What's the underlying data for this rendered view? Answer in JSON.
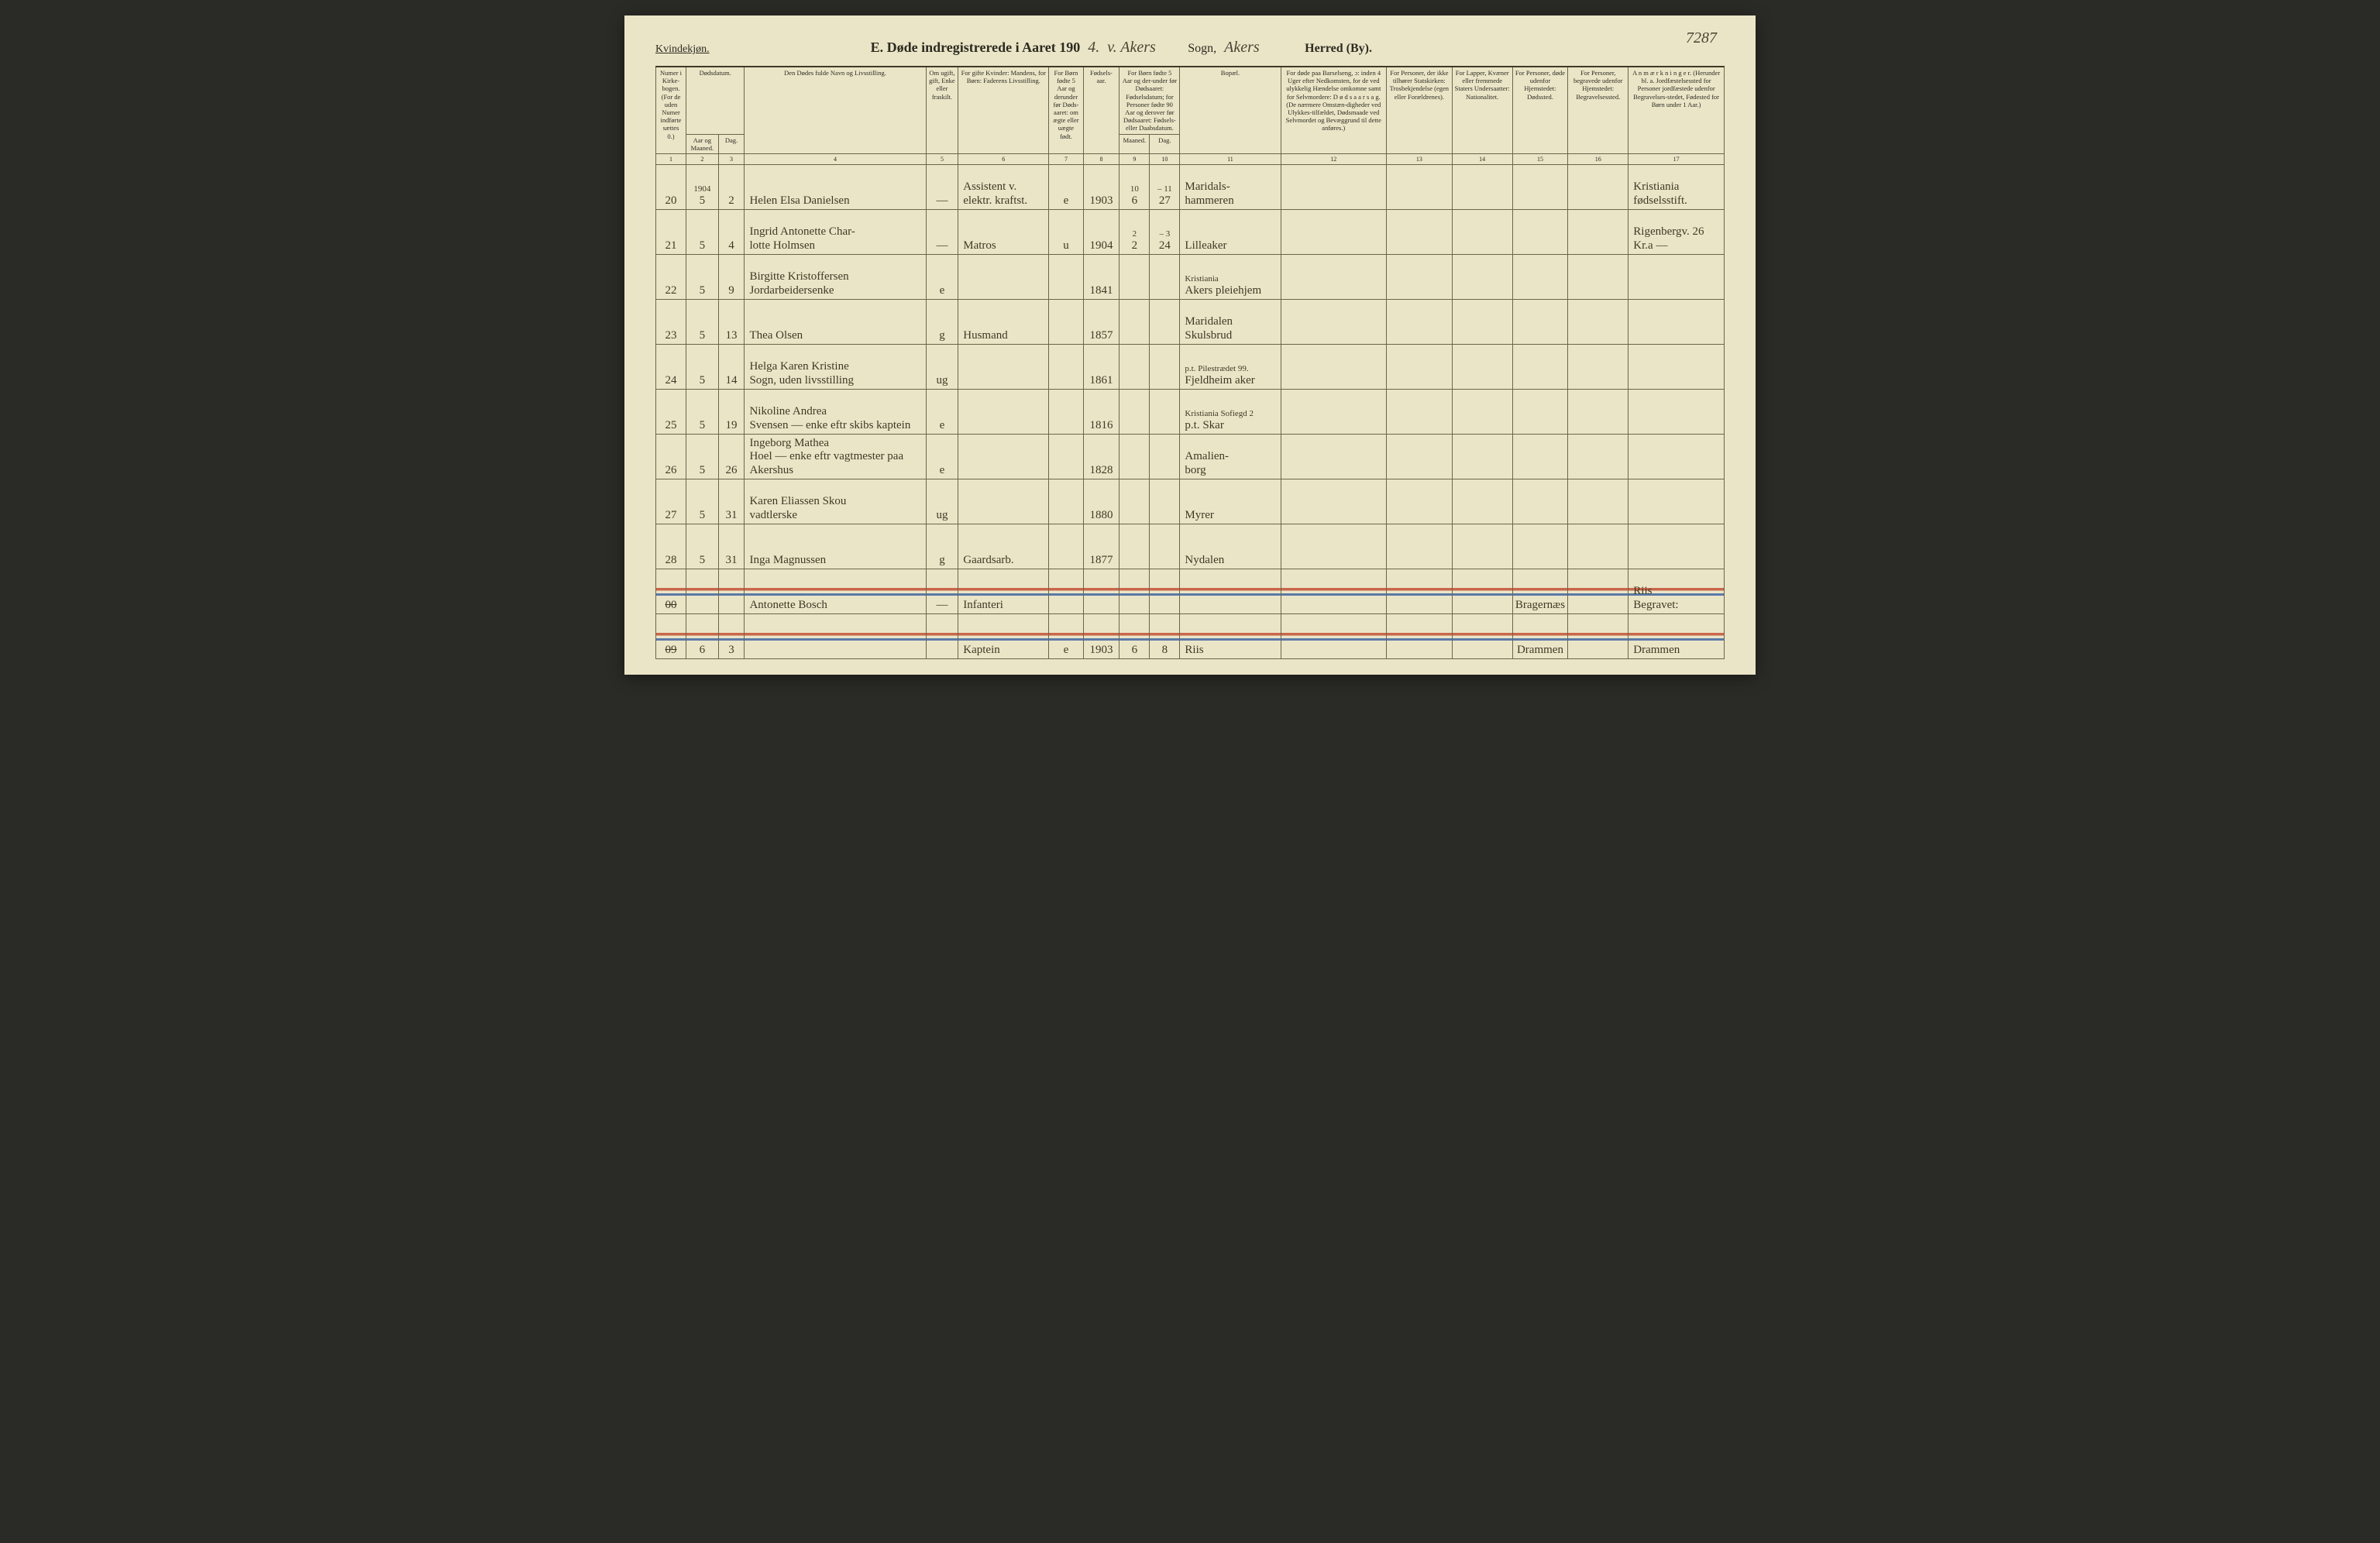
{
  "page_number_hw": "7287",
  "header": {
    "sex_label": "Kvindekjøn.",
    "title_prefix": "E.  Døde indregistrerede i Aaret 190",
    "year_hw": "4.",
    "sogn_hw": "v. Akers",
    "sogn_label": "Sogn,",
    "herred_hw": "Akers",
    "herred_label": "Herred (By)."
  },
  "columns": {
    "c1": "Numer i Kirke-bogen. (For de uden Numer indførte sættes 0.)",
    "c2_group": "Dødsdatum.",
    "c2": "Aar og Maaned.",
    "c3": "Dag.",
    "c4": "Den Dødes fulde Navn og Livsstilling.",
    "c5": "Om ugift, gift, Enke eller fraskilt.",
    "c6": "For gifte Kvinder: Mandens, for Børn: Faderens Livsstilling.",
    "c7": "For Børn fødte 5 Aar og derunder før Døds-aaret: om ægte eller uægte født.",
    "c8": "Fødsels-aar.",
    "c9_10_group": "For Børn fødte 5 Aar og der-under før Dødsaaret: Fødselsdatum; for Personer fødte 90 Aar og derover før Dødsaaret: Fødsels- eller Daabsdatum.",
    "c9": "Maaned.",
    "c10": "Dag.",
    "c11": "Bopæl.",
    "c12": "For døde paa Barselseng, ɔ: inden 4 Uger efter Nedkomsten, for de ved ulykkelig Hændelse omkomne samt for Selvmordere: D ø d s a a r s a g. (De nærmere Omstæn-digheder ved Ulykkes-tilfældet, Dødsmaade ved Selvmordet og Bevæggrund til dette anføres.)",
    "c13": "For Personer, der ikke tilhører Statskirken: Trosbekjendelse (egen eller Forældrenes).",
    "c14": "For Lapper, Kvæner eller fremmede Staters Undersaatter: Nationalitet.",
    "c15": "For Personer, døde udenfor Hjemstedet: Dødssted.",
    "c16": "For Personer, begravede udenfor Hjemstedet: Begravelsessted.",
    "c17": "A n m æ r k n i n g e r. (Herunder bl. a. Jordfæstelsessted for Personer jordfæstede udenfor Begravelses-stedet, Fødested for Børn under 1 Aar.)"
  },
  "colnums": [
    "1",
    "2",
    "3",
    "4",
    "5",
    "6",
    "7",
    "8",
    "9",
    "10",
    "11",
    "12",
    "13",
    "14",
    "15",
    "16",
    "17"
  ],
  "rows": [
    {
      "no": "20",
      "aar_top": "1904",
      "aar": "5",
      "dag": "2",
      "name": "Helen Elsa Danielsen",
      "name_sub": "",
      "status": "—",
      "occ": "Assistent v.\nelektr. kraftst.",
      "legit": "e",
      "faar": "1903",
      "fm_top": "10",
      "fm": "6",
      "fd_top": "– 11",
      "fd": "27",
      "bopael": "Maridals-\nhammeren",
      "anm": "Kristiania\nfødselsstift."
    },
    {
      "no": "21",
      "aar": "5",
      "dag": "4",
      "name": "Ingrid Antonette Char-\nlotte Holmsen",
      "status": "—",
      "occ": "Matros",
      "legit": "u",
      "faar": "1904",
      "fm_top": "2",
      "fm": "2",
      "fd_top": "– 3",
      "fd": "24",
      "bopael": "Lilleaker",
      "anm": "Rigenbergv. 26\nKr.a —"
    },
    {
      "no": "22",
      "aar": "5",
      "dag": "9",
      "name": "Birgitte Kristoffersen\nJordarbeidersenke",
      "status": "e",
      "occ": "",
      "legit": "",
      "faar": "1841",
      "fm": "",
      "fd": "",
      "bopael_sub": "Kristiania",
      "bopael": "Akers pleiehjem",
      "anm": ""
    },
    {
      "no": "23",
      "aar": "5",
      "dag": "13",
      "name": "Thea Olsen",
      "status": "g",
      "occ": "Husmand",
      "legit": "",
      "faar": "1857",
      "fm": "",
      "fd": "",
      "bopael": "Maridalen\nSkulsbrud",
      "anm": ""
    },
    {
      "no": "24",
      "aar": "5",
      "dag": "14",
      "name": "Helga Karen Kristine\nSogn, uden livsstilling",
      "status": "ug",
      "occ": "",
      "legit": "",
      "faar": "1861",
      "fm": "",
      "fd": "",
      "bopael_sub": "p.t. Pilestrædet 99.",
      "bopael": "Fjeldheim aker",
      "anm": ""
    },
    {
      "no": "25",
      "aar": "5",
      "dag": "19",
      "name": "Nikoline Andrea\nSvensen — enke eftr skibs kaptein",
      "status": "e",
      "occ": "",
      "legit": "",
      "faar": "1816",
      "fm": "",
      "fd": "",
      "bopael_sub": "Kristiania Sofiegd 2",
      "bopael": "p.t. Skar",
      "anm": ""
    },
    {
      "no": "26",
      "aar": "5",
      "dag": "26",
      "name": "Ingeborg Mathea\nHoel — enke eftr vagtmester paa Akershus",
      "status": "e",
      "occ": "",
      "legit": "",
      "faar": "1828",
      "fm": "",
      "fd": "",
      "bopael": "Amalien-\nborg",
      "anm": ""
    },
    {
      "no": "27",
      "aar": "5",
      "dag": "31",
      "name": "Karen Eliassen Skou\nvadtlerske",
      "status": "ug",
      "occ": "",
      "legit": "",
      "faar": "1880",
      "fm": "",
      "fd": "",
      "bopael": "Myrer",
      "anm": ""
    },
    {
      "no": "28",
      "aar": "5",
      "dag": "31",
      "name": "Inga Magnussen",
      "status": "g",
      "occ": "Gaardsarb.",
      "legit": "",
      "faar": "1877",
      "fm": "",
      "fd": "",
      "bopael": "Nydalen",
      "anm": ""
    },
    {
      "no_strike": "00",
      "aar": "",
      "dag": "",
      "name": "Antonette Bosch",
      "status": "—",
      "occ": "Infanteri",
      "legit": "",
      "faar": "",
      "fm": "",
      "fd": "",
      "bopael": "",
      "c15": "Bragernæs",
      "anm": "Riis\nBegravet:",
      "struck": true
    },
    {
      "no_strike": "09",
      "aar": "6",
      "dag": "3",
      "name": "",
      "status": "",
      "occ": "Kaptein",
      "legit": "e",
      "faar": "1903",
      "fm": "6",
      "fd": "8",
      "bopael": "Riis",
      "c15": "Drammen",
      "anm": "Drammen",
      "struck": true
    }
  ],
  "colors": {
    "paper": "#ebe5c8",
    "ink": "#2b2b20",
    "handwriting": "#3f3925",
    "rule": "#6b644a",
    "strike_red": "#c9664a",
    "strike_blue": "#5b7aa8"
  },
  "colwidths_pct": [
    3.0,
    3.2,
    2.6,
    18.0,
    3.2,
    9.0,
    3.4,
    3.6,
    3.0,
    3.0,
    10.0,
    10.5,
    6.5,
    6.0,
    5.5,
    6.0,
    9.5
  ]
}
